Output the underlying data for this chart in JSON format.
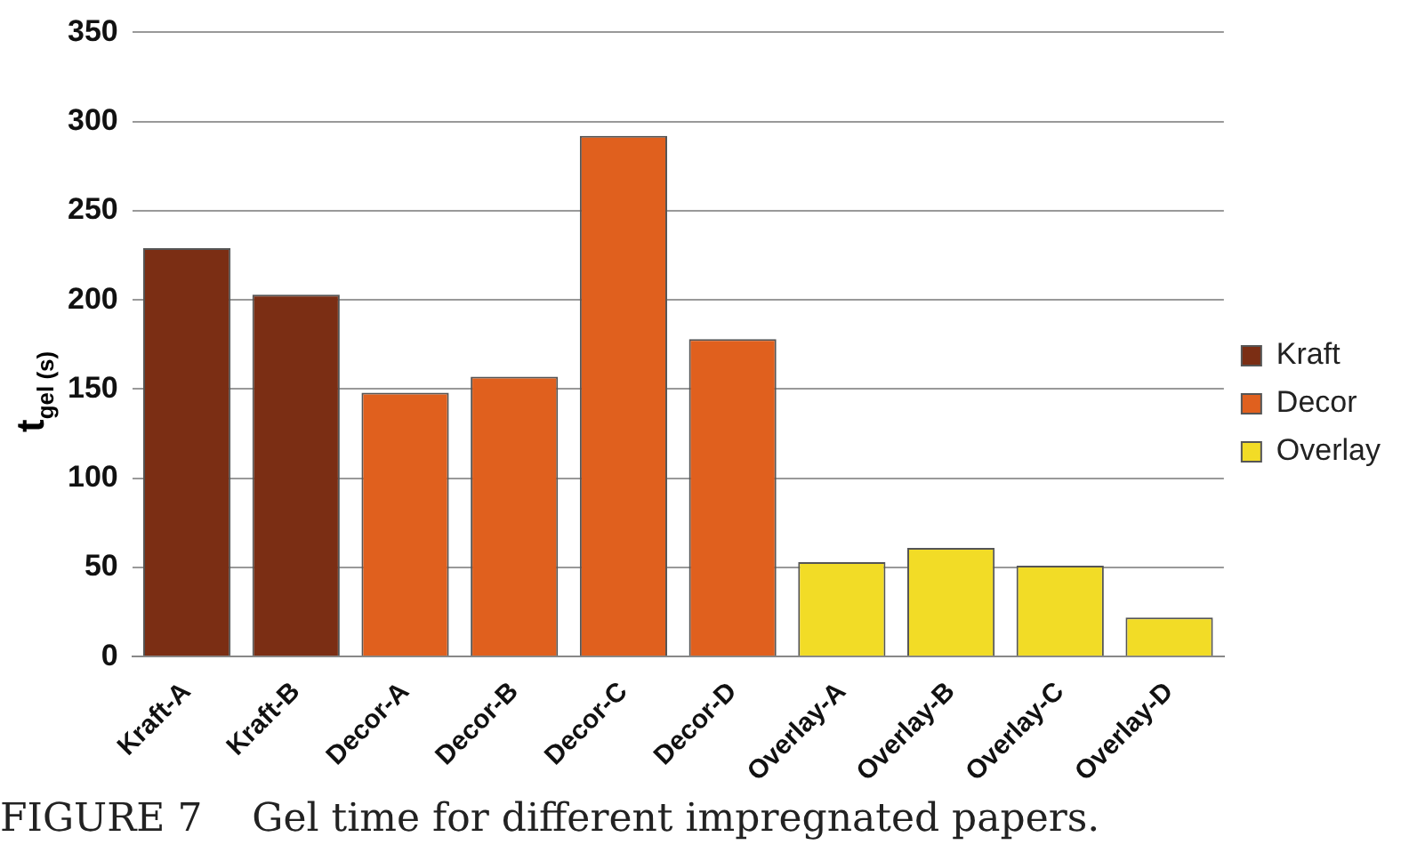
{
  "chart_data": {
    "type": "bar",
    "ylabel": "t$_{gel (s)}$",
    "categories": [
      "Kraft-A",
      "Kraft-B",
      "Decor-A",
      "Decor-B",
      "Decor-C",
      "Decor-D",
      "Overlay-A",
      "Overlay-B",
      "Overlay-C",
      "Overlay-D"
    ],
    "series": [
      {
        "name": "Kraft",
        "color": "#7b2e14",
        "values": [
          229,
          203,
          null,
          null,
          null,
          null,
          null,
          null,
          null,
          null
        ]
      },
      {
        "name": "Decor",
        "color": "#e0601e",
        "values": [
          null,
          null,
          148,
          157,
          292,
          178,
          null,
          null,
          null,
          null
        ]
      },
      {
        "name": "Overlay",
        "color": "#f2dc26",
        "values": [
          null,
          null,
          null,
          null,
          null,
          null,
          53,
          61,
          51,
          22
        ]
      }
    ],
    "ylim": [
      0,
      350
    ],
    "yticks": [
      0,
      50,
      100,
      150,
      200,
      250,
      300,
      350
    ],
    "grid": "y",
    "legend": "right",
    "annotations": [
      "FIGURE 7    Gel time for different impregnated papers."
    ]
  }
}
